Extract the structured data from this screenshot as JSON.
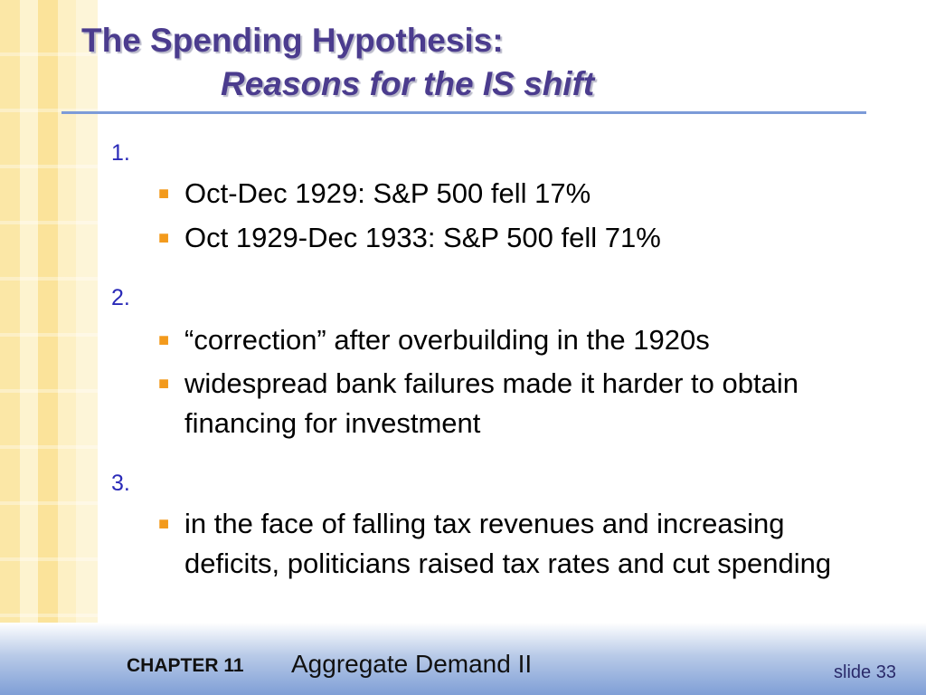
{
  "slide": {
    "title_line1": "The Spending Hypothesis:",
    "title_line2": "Reasons for the IS shift",
    "items": [
      {
        "number": "1.",
        "bullets": [
          "Oct-Dec 1929:  S&P 500 fell 17%",
          "Oct 1929-Dec 1933:  S&P 500 fell 71%"
        ]
      },
      {
        "number": "2.",
        "bullets": [
          "“correction” after overbuilding in the 1920s",
          "widespread bank failures made it harder to obtain financing for investment"
        ]
      },
      {
        "number": "3.",
        "bullets": [
          "in the face of falling tax revenues and increasing deficits, politicians raised tax rates and cut spending"
        ]
      }
    ]
  },
  "footer": {
    "chapter": "CHAPTER 11",
    "chapter_title": "Aggregate Demand II",
    "slide_number": "slide 33"
  },
  "colors": {
    "title": "#4b3c8e",
    "rule": "#7c9bd8",
    "number": "#2a2ab8",
    "bullet_marker": "#f39a1c",
    "stripe": "#fbe7a6"
  },
  "icons": {
    "bullet_marker": "orange-square-bullet"
  }
}
